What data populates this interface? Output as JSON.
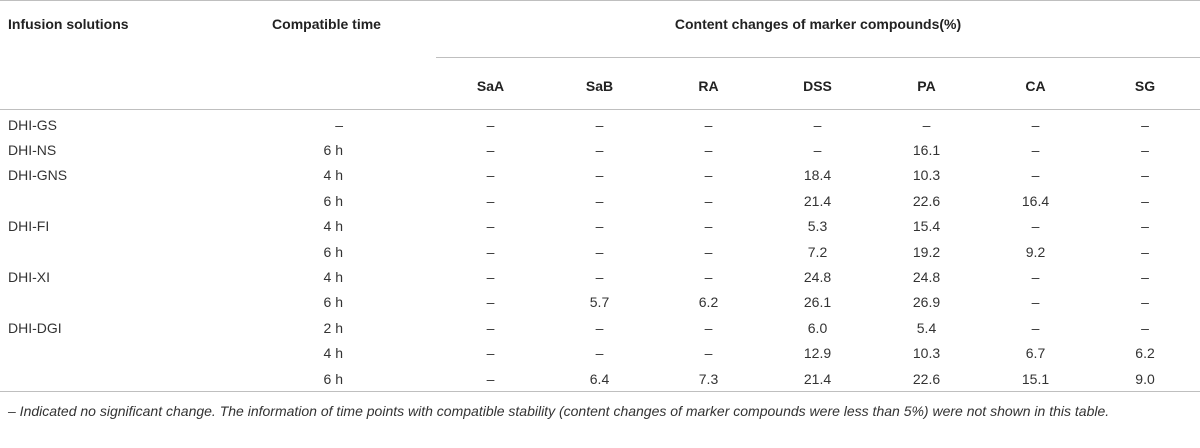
{
  "table": {
    "headers": {
      "infusion": "Infusion solutions",
      "time": "Compatible time",
      "group": "Content changes of marker compounds(%)",
      "compounds": [
        "SaA",
        "SaB",
        "RA",
        "DSS",
        "PA",
        "CA",
        "SG"
      ]
    },
    "rows": [
      {
        "solution": "DHI-GS",
        "time": "–",
        "values": [
          "–",
          "–",
          "–",
          "–",
          "–",
          "–",
          "–"
        ]
      },
      {
        "solution": "DHI-NS",
        "time": "6 h",
        "values": [
          "–",
          "–",
          "–",
          "–",
          "16.1",
          "–",
          "–"
        ]
      },
      {
        "solution": "DHI-GNS",
        "time": "4 h",
        "values": [
          "–",
          "–",
          "–",
          "18.4",
          "10.3",
          "–",
          "–"
        ]
      },
      {
        "solution": "",
        "time": "6 h",
        "values": [
          "–",
          "–",
          "–",
          "21.4",
          "22.6",
          "16.4",
          "–"
        ]
      },
      {
        "solution": "DHI-FI",
        "time": "4 h",
        "values": [
          "–",
          "–",
          "–",
          "5.3",
          "15.4",
          "–",
          "–"
        ]
      },
      {
        "solution": "",
        "time": "6 h",
        "values": [
          "–",
          "–",
          "–",
          "7.2",
          "19.2",
          "9.2",
          "–"
        ]
      },
      {
        "solution": "DHI-XI",
        "time": "4 h",
        "values": [
          "–",
          "–",
          "–",
          "24.8",
          "24.8",
          "–",
          "–"
        ]
      },
      {
        "solution": "",
        "time": "6 h",
        "values": [
          "–",
          "5.7",
          "6.2",
          "26.1",
          "26.9",
          "–",
          "–"
        ]
      },
      {
        "solution": "DHI-DGI",
        "time": "2 h",
        "values": [
          "–",
          "–",
          "–",
          "6.0",
          "5.4",
          "–",
          "–"
        ]
      },
      {
        "solution": "",
        "time": "4 h",
        "values": [
          "–",
          "–",
          "–",
          "12.9",
          "10.3",
          "6.7",
          "6.2"
        ]
      },
      {
        "solution": "",
        "time": "6 h",
        "values": [
          "–",
          "6.4",
          "7.3",
          "21.4",
          "22.6",
          "15.1",
          "9.0"
        ]
      }
    ],
    "footnote": "– Indicated no significant change. The information of time points with compatible stability (content changes of marker compounds were less than 5%) were not shown in this table."
  }
}
